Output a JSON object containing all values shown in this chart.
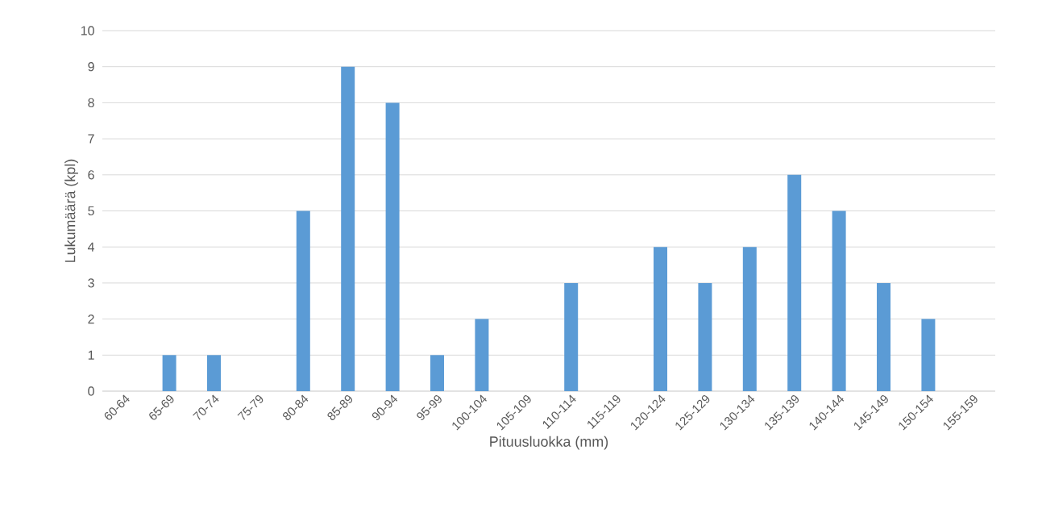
{
  "chart_data": {
    "type": "bar",
    "xlabel": "Pituusluokka (mm)",
    "ylabel": "Lukumäärä (kpl)",
    "categories": [
      "60-64",
      "65-69",
      "70-74",
      "75-79",
      "80-84",
      "85-89",
      "90-94",
      "95-99",
      "100-104",
      "105-109",
      "110-114",
      "115-119",
      "120-124",
      "125-129",
      "130-134",
      "135-139",
      "140-144",
      "145-149",
      "150-154",
      "155-159"
    ],
    "values": [
      0,
      1,
      1,
      0,
      5,
      9,
      8,
      1,
      2,
      0,
      3,
      0,
      4,
      3,
      4,
      6,
      5,
      3,
      2,
      0
    ],
    "color": "#5b9bd5",
    "ylim": [
      0,
      10
    ],
    "yticks": [
      0,
      1,
      2,
      3,
      4,
      5,
      6,
      7,
      8,
      9,
      10
    ],
    "grid": "y"
  }
}
